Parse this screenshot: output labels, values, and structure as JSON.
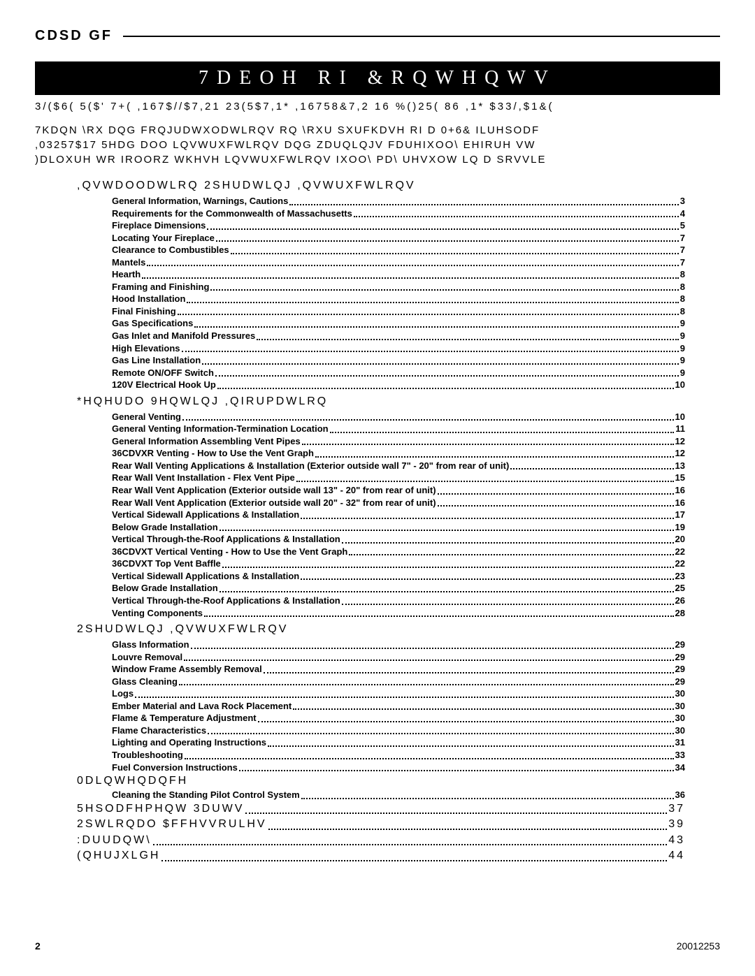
{
  "model": "CDSD GF",
  "title": "7DEOH RI &RQWHQWV",
  "subtitle": "3/($6(  5($'  7+(  ,167$//$7,21    23(5$7,1*  ,16758&7,2 16  %()25(  86 ,1*  $33/,$1&(",
  "intro_lines": [
    "7KDQN \\RX DQG FRQJUDWXODWLRQV RQ \\RXU SXUFKDVH RI D 0+6& ILUHSODF",
    ",03257$17   5HDG DOO LQVWUXFWLRQV DQG ZDUQLQJV FDUHIXOO\\ EHIRUH VW",
    ")DLOXUH WR IROORZ WKHVH LQVWUXFWLRQV IXOO\\ PD\\ UHVXOW LQ D SRVVLE"
  ],
  "sections": [
    {
      "heading": ",QVWDOODWLRQ   2SHUDWLQJ ,QVWUXFWLRQV",
      "items": [
        {
          "label": "General Information, Warnings, Cautions",
          "pg": "3"
        },
        {
          "label": "Requirements for the Commonwealth of Massachusetts",
          "pg": "4"
        },
        {
          "label": "Fireplace Dimensions",
          "pg": "5"
        },
        {
          "label": "Locating Your Fireplace",
          "pg": "7"
        },
        {
          "label": "Clearance to Combustibles",
          "pg": "7"
        },
        {
          "label": "Mantels",
          "pg": "7"
        },
        {
          "label": "Hearth",
          "pg": "8"
        },
        {
          "label": "Framing and Finishing",
          "pg": "8"
        },
        {
          "label": "Hood Installation",
          "pg": "8"
        },
        {
          "label": "Final Finishing",
          "pg": "8"
        },
        {
          "label": "Gas Specifications",
          "pg": "9"
        },
        {
          "label": "Gas Inlet and Manifold Pressures",
          "pg": "9"
        },
        {
          "label": "High Elevations",
          "pg": "9"
        },
        {
          "label": "Gas Line Installation",
          "pg": "9"
        },
        {
          "label": "Remote ON/OFF Switch",
          "pg": "9"
        },
        {
          "label": "120V Electrical Hook Up",
          "pg": "10"
        }
      ]
    },
    {
      "heading": "*HQHUDO 9HQWLQJ ,QIRUPDWLRQ",
      "items": [
        {
          "label": "General Venting",
          "pg": "10"
        },
        {
          "label": "General Venting Information-Termination Location",
          "pg": "11"
        },
        {
          "label": "General Information Assembling Vent Pipes",
          "pg": "12"
        },
        {
          "label": "36CDVXR Venting - How to Use the Vent Graph",
          "pg": "12"
        },
        {
          "label": "Rear Wall Venting Applications & Installation (Exterior outside wall 7\" - 20\" from rear of unit)",
          "pg": "13"
        },
        {
          "label": "Rear Wall Vent Installation - Flex Vent Pipe",
          "pg": "15"
        },
        {
          "label": "Rear Wall Vent Application (Exterior outside wall 13\" - 20\" from rear of unit)",
          "pg": "16"
        },
        {
          "label": "Rear Wall Vent Application (Exterior outside wall 20\" - 32\" from rear of unit)",
          "pg": "16"
        },
        {
          "label": "Vertical Sidewall Applications & Installation",
          "pg": "17"
        },
        {
          "label": "Below Grade Installation",
          "pg": "19"
        },
        {
          "label": "Vertical Through-the-Roof Applications & Installation",
          "pg": "20"
        },
        {
          "label": "36CDVXT Vertical Venting - How to Use the Vent Graph",
          "pg": "22"
        },
        {
          "label": "36CDVXT Top Vent Baffle",
          "pg": "22"
        },
        {
          "label": "Vertical Sidewall Applications & Installation",
          "pg": "23"
        },
        {
          "label": "Below Grade Installation",
          "pg": "25"
        },
        {
          "label": "Vertical Through-the-Roof Applications & Installation",
          "pg": "26"
        },
        {
          "label": "Venting Components",
          "pg": "28"
        }
      ]
    },
    {
      "heading": "2SHUDWLQJ ,QVWUXFWLRQV",
      "items": [
        {
          "label": "Glass Information",
          "pg": "29"
        },
        {
          "label": "Louvre Removal",
          "pg": "29"
        },
        {
          "label": "Window Frame Assembly Removal",
          "pg": "29"
        },
        {
          "label": "Glass Cleaning",
          "pg": "29"
        },
        {
          "label": "Logs",
          "pg": "30"
        },
        {
          "label": "Ember Material and Lava Rock Placement",
          "pg": "30"
        },
        {
          "label": "Flame & Temperature Adjustment",
          "pg": "30"
        },
        {
          "label": "Flame Characteristics",
          "pg": "30"
        },
        {
          "label": "Lighting and Operating Instructions",
          "pg": "31"
        },
        {
          "label": "Troubleshooting",
          "pg": "33"
        },
        {
          "label": "Fuel Conversion Instructions",
          "pg": "34"
        }
      ]
    }
  ],
  "tail": [
    {
      "type": "plain",
      "text": "0DLQWHQDQFH"
    },
    {
      "type": "toc",
      "label": "Cleaning the Standing Pilot Control System",
      "pg": "36"
    },
    {
      "type": "heading-dotted",
      "label": "5HSODFHPHQW 3DUWV",
      "pg": "37"
    },
    {
      "type": "heading-dotted",
      "label": "2SWLRQDO $FFHVVRULHV",
      "pg": "39"
    },
    {
      "type": "heading-dotted",
      "label": ":DUUDQW\\",
      "pg": "43"
    },
    {
      "type": "heading-dotted",
      "label": "(QHUJXLGH",
      "pg": "44"
    }
  ],
  "footer": {
    "page": "2",
    "docnum": "20012253"
  }
}
